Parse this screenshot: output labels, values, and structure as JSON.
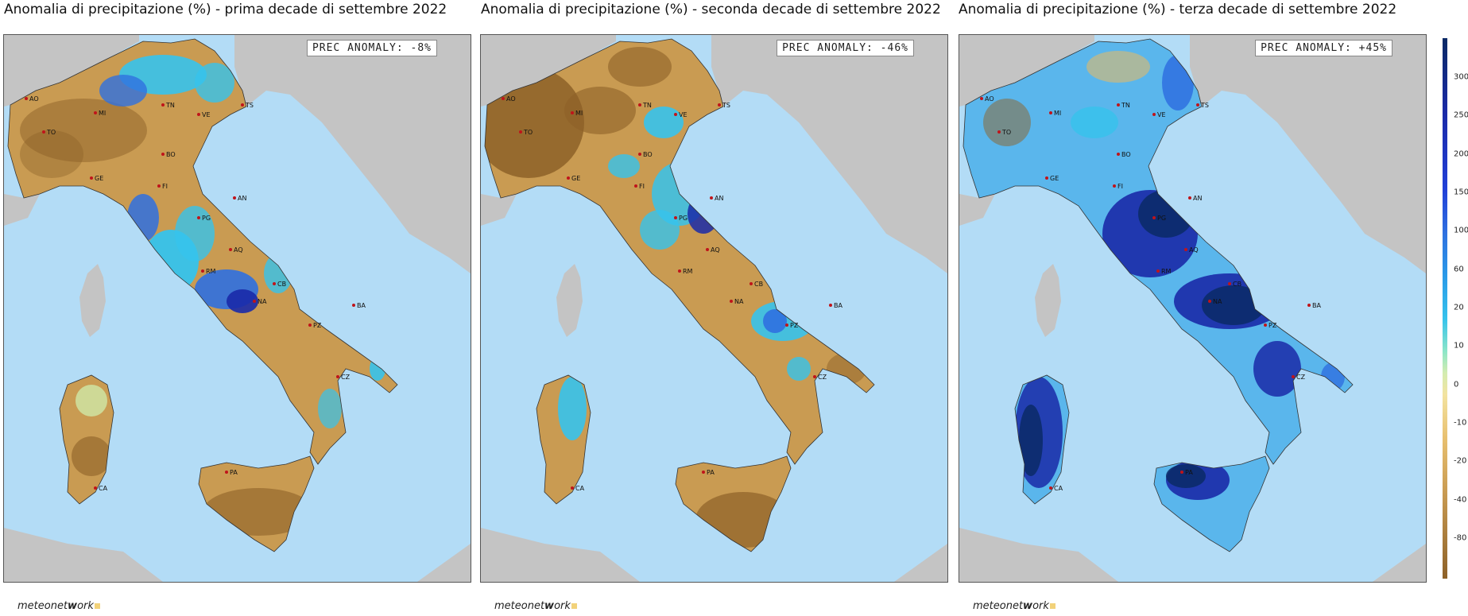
{
  "panels": [
    {
      "title": "Anomalia di precipitazione (%) - prima decade di settembre 2022",
      "anomaly": "PREC ANOMALY: -8%",
      "tone": "dry",
      "logo": {
        "pre": "meteonet",
        "bold": "w",
        "post": "ork"
      }
    },
    {
      "title": "Anomalia di precipitazione (%) - seconda decade di settembre 2022",
      "anomaly": "PREC ANOMALY: -46%",
      "tone": "verydry",
      "logo": {
        "pre": "meteonet",
        "bold": "w",
        "post": "ork"
      }
    },
    {
      "title": "Anomalia di precipitazione (%) - terza decade di settembre 2022",
      "anomaly": "PREC ANOMALY: +45%",
      "tone": "wet",
      "logo": {
        "pre": "meteonet",
        "bold": "w",
        "post": "ork"
      }
    }
  ],
  "cities": [
    "AO",
    "MI",
    "TO",
    "TN",
    "VE",
    "TS",
    "BO",
    "GE",
    "FI",
    "AN",
    "PG",
    "AQ",
    "RM",
    "CB",
    "NA",
    "BA",
    "PZ",
    "CZ",
    "PA",
    "CA"
  ],
  "colorbar_ticks": [
    "300",
    "250",
    "200",
    "150",
    "100",
    "60",
    "20",
    "10",
    "0",
    "-10",
    "-20",
    "-40",
    "-80"
  ],
  "colors": {
    "sea": "#b3dcf6",
    "foreign_land": "#c4c4c4",
    "dry": "#c99b52",
    "very_dry": "#8d6128",
    "light_dry": "#e0b96b",
    "neutral": "#cfe8a8",
    "wet_light": "#36c3ec",
    "wet": "#2f70e0",
    "wet_strong": "#1a2aa8",
    "wet_extreme": "#0b2a66"
  }
}
